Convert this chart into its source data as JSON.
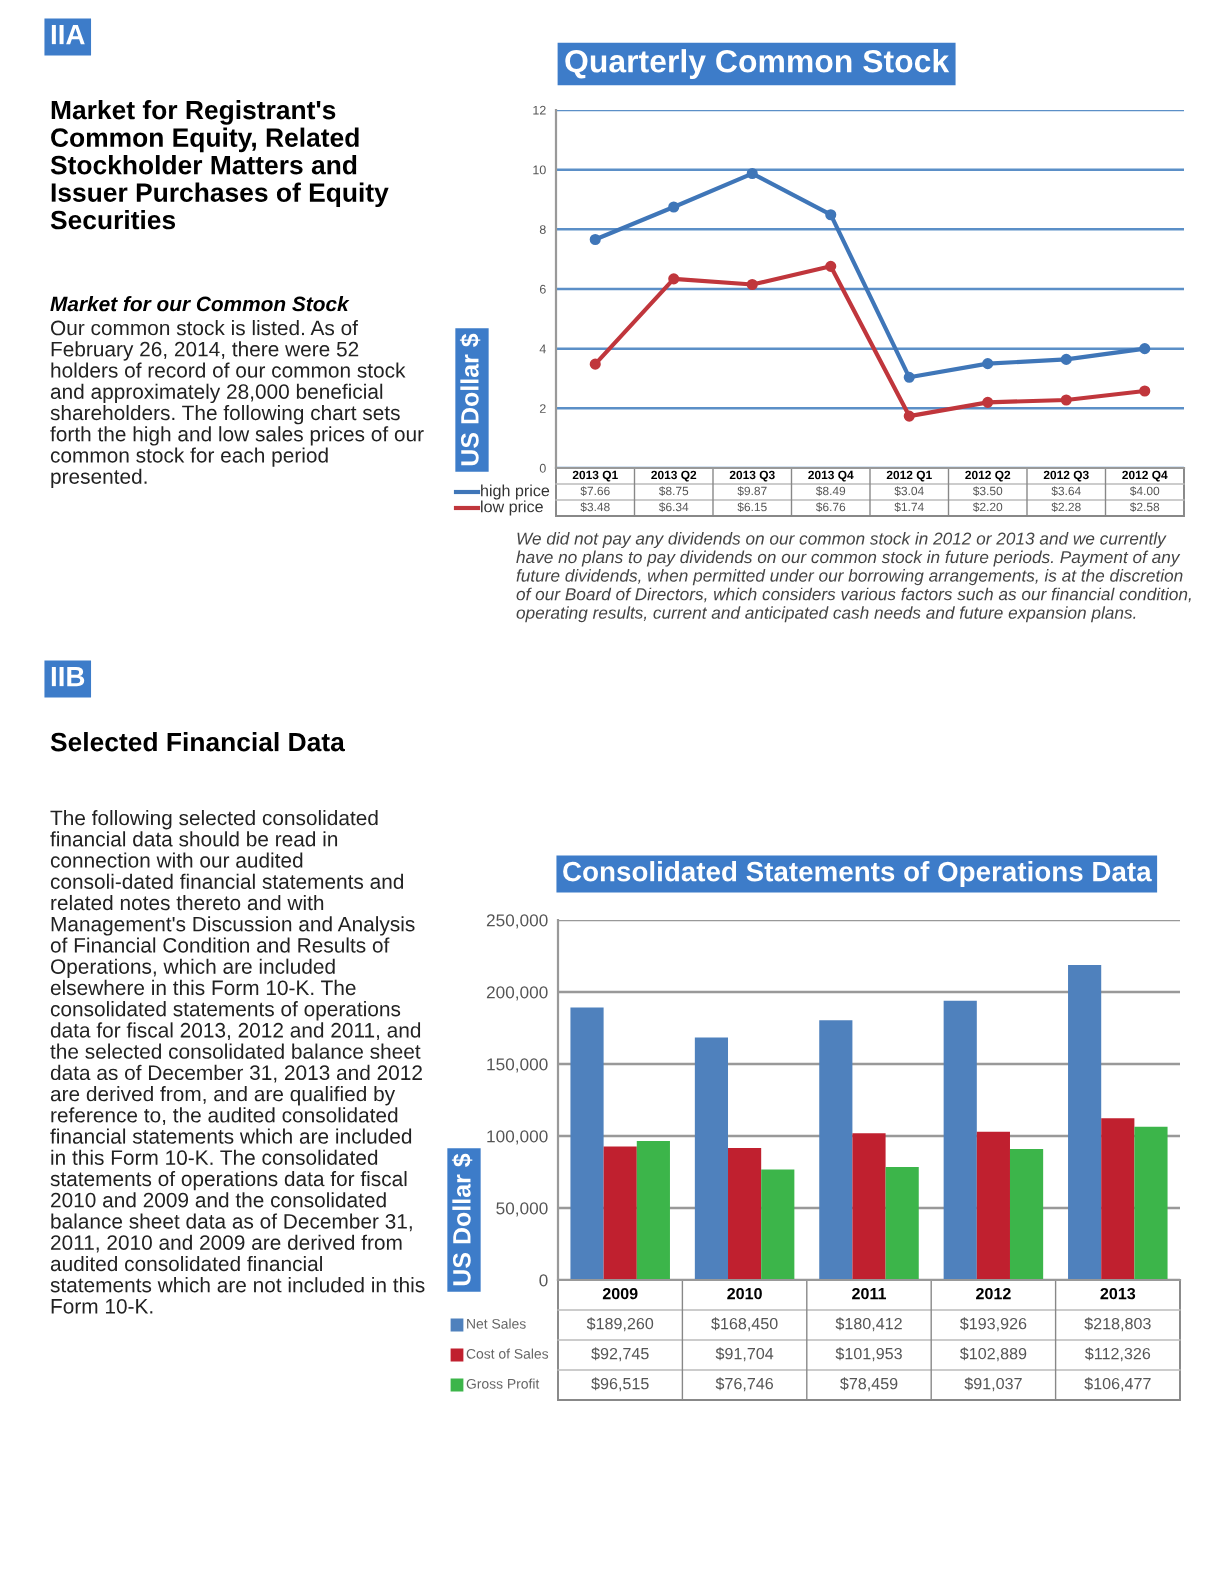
{
  "chart_data": [
    {
      "type": "line",
      "title": "Quarterly Common Stock",
      "ylabel": "US Dollar $",
      "categories": [
        "2013 Q1",
        "2013 Q2",
        "2013 Q3",
        "2013 Q4",
        "2012 Q1",
        "2012 Q2",
        "2012 Q3",
        "2012 Q4"
      ],
      "series": [
        {
          "name": "high price",
          "color": "#3f76b8",
          "values": [
            7.66,
            8.75,
            9.87,
            8.49,
            3.04,
            3.5,
            3.64,
            4.0
          ],
          "value_labels": [
            "$7.66",
            "$8.75",
            "$9.87",
            "$8.49",
            "$3.04",
            "$3.50",
            "$3.64",
            "$4.00"
          ]
        },
        {
          "name": "low price",
          "color": "#c0363c",
          "values": [
            3.48,
            6.34,
            6.15,
            6.76,
            1.74,
            2.2,
            2.28,
            2.58
          ],
          "value_labels": [
            "$3.48",
            "$6.34",
            "$6.15",
            "$6.76",
            "$1.74",
            "$2.20",
            "$2.28",
            "$2.58"
          ]
        }
      ],
      "ylim": [
        0,
        12
      ],
      "yticks": [
        0,
        2,
        4,
        6,
        8,
        10,
        12
      ],
      "grid": "y",
      "legend": "bottom left",
      "marker": "circle",
      "line_style": "solid",
      "annotations": [
        "IIA",
        "Market for Registrant's Common Equity, Related Stockholder Matters and Issuer Purchases of Equity Securities",
        "Market for our Common Stock",
        "Our common stock is listed. As of February 26, 2014, there were 52 holders of record of our common stock and approximately 28,000 beneficial shareholders. The following chart sets forth the high and low sales prices of our common stock for each period presented.",
        "We did not pay any dividends on our common stock in 2012 or 2013 and we currently have no plans to pay dividends on our common stock in future periods. Payment of any future dividends, when permitted under our borrowing arrangements, is at the discretion of our Board of Directors, which considers various factors such as our financial condition, operating results, current and anticipated cash needs and future expansion plans."
      ]
    },
    {
      "type": "bar",
      "title": "Consolidated Statements of Operations Data",
      "ylabel": "US Dollar $",
      "categories": [
        "2009",
        "2010",
        "2011",
        "2012",
        "2013"
      ],
      "series": [
        {
          "name": "Net Sales",
          "color": "#4f81bd",
          "values": [
            189260,
            168450,
            180412,
            193926,
            218803
          ],
          "value_labels": [
            "$189,260",
            "$168,450",
            "$180,412",
            "$193,926",
            "$218,803"
          ]
        },
        {
          "name": "Cost of Sales",
          "color": "#c0202f",
          "values": [
            92745,
            91704,
            101953,
            102889,
            112326
          ],
          "value_labels": [
            "$92,745",
            "$91,704",
            "$101,953",
            "$102,889",
            "$112,326"
          ]
        },
        {
          "name": "Gross Profit",
          "color": "#3cb54a",
          "values": [
            96515,
            76746,
            78459,
            91037,
            106477
          ],
          "value_labels": [
            "$96,515",
            "$76,746",
            "$78,459",
            "$91,037",
            "$106,477"
          ]
        }
      ],
      "ylim": [
        0,
        250000
      ],
      "yticks": [
        0,
        {
          "value": 50000,
          "label": "50,000"
        },
        {
          "value": 100000,
          "label": "100,000"
        },
        {
          "value": 150000,
          "label": "150,000"
        },
        {
          "value": 200000,
          "label": "200,000"
        },
        {
          "value": 250000,
          "label": "250,000"
        }
      ],
      "grid": "y",
      "legend": "bottom left",
      "annotations": [
        "IIB",
        "Selected Financial Data",
        "The following selected consolidated financial data should be read in connection with our audited consoli-dated financial statements and related notes thereto and with Management's Discussion and Analysis of Financial Condition and Results of Operations, which are included elsewhere in this Form 10-K. The consolidated statements of operations data for fiscal 2013, 2012 and 2011, and the selected consolidated balance sheet data as of December 31, 2013 and 2012 are derived from, and are qualified by reference to, the audited consolidated financial statements which are included in this Form 10-K. The consolidated statements of operations data for fiscal 2010 and 2009 and the consolidated balance sheet data as of December 31, 2011, 2010 and 2009 are derived from audited consolidated financial statements which are not included in this Form 10-K."
      ]
    }
  ]
}
